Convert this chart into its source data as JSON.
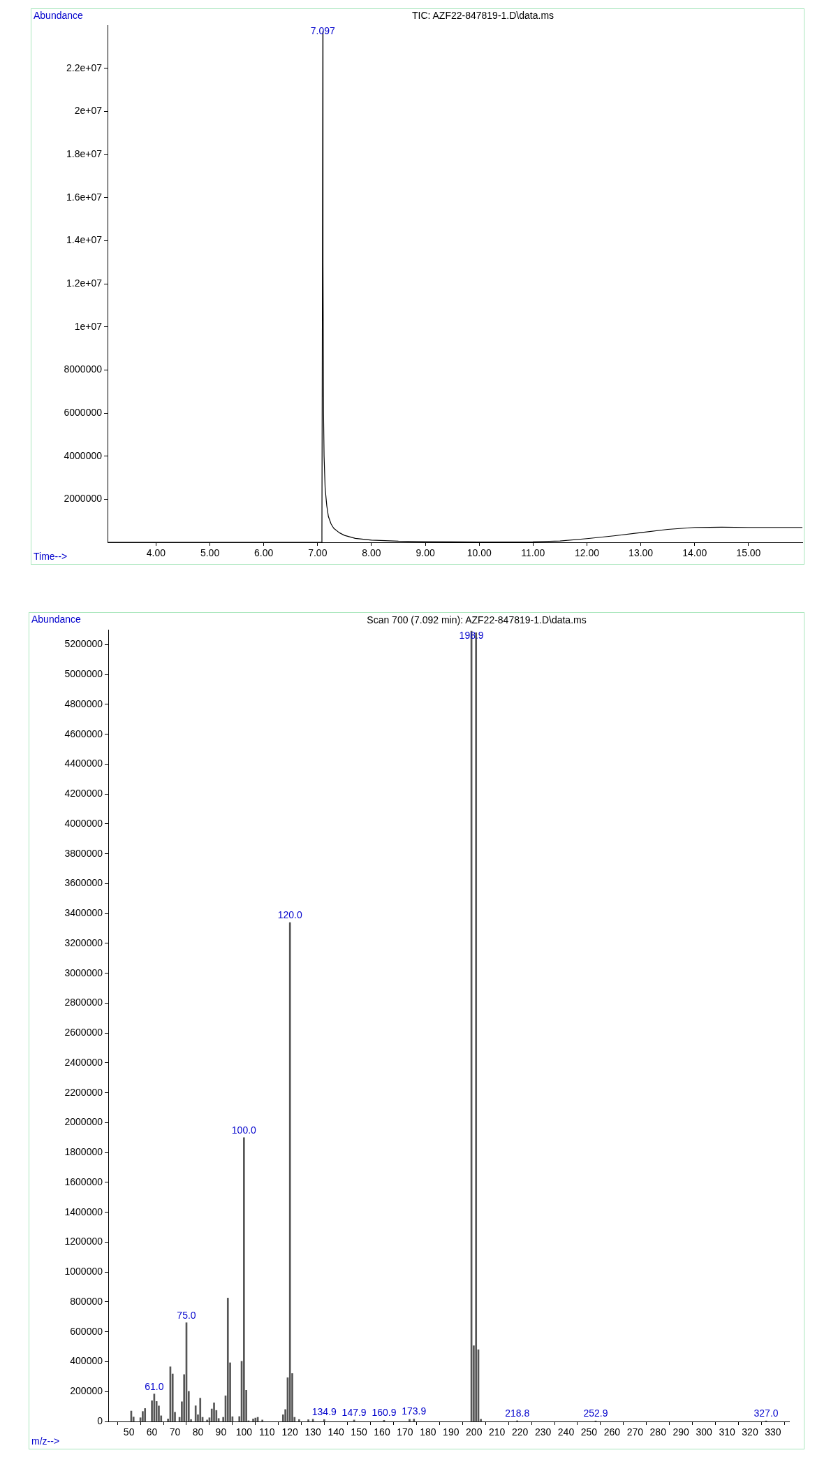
{
  "chart_data": [
    {
      "type": "line",
      "title": "TIC: AZF22-847819-1.D\\data.ms",
      "xlabel": "Time-->",
      "ylabel": "Abundance",
      "color": "#000000",
      "x": [
        3.1,
        7.0,
        7.07,
        7.08,
        7.09,
        7.097,
        7.1,
        7.11,
        7.12,
        7.14,
        7.17,
        7.2,
        7.25,
        7.3,
        7.4,
        7.5,
        7.7,
        8.0,
        8.5,
        9.0,
        10.0,
        11.0,
        11.5,
        12.0,
        12.5,
        13.0,
        13.5,
        14.0,
        14.5,
        15.0,
        15.5,
        16.0
      ],
      "values": [
        0,
        0,
        0,
        300000,
        13000000,
        23700000,
        13000000,
        6000000,
        4000000,
        2500000,
        1700000,
        1200000,
        850000,
        650000,
        450000,
        320000,
        180000,
        100000,
        50000,
        30000,
        10000,
        20000,
        60000,
        170000,
        300000,
        450000,
        600000,
        690000,
        700000,
        690000,
        690000,
        690000
      ],
      "xlim": [
        3.1,
        16.0
      ],
      "ylim": [
        0,
        24000000
      ],
      "xticks": [
        {
          "value": 4,
          "label": "4.00"
        },
        {
          "value": 5,
          "label": "5.00"
        },
        {
          "value": 6,
          "label": "6.00"
        },
        {
          "value": 7,
          "label": "7.00"
        },
        {
          "value": 8,
          "label": "8.00"
        },
        {
          "value": 9,
          "label": "9.00"
        },
        {
          "value": 10,
          "label": "10.00"
        },
        {
          "value": 11,
          "label": "11.00"
        },
        {
          "value": 12,
          "label": "12.00"
        },
        {
          "value": 13,
          "label": "13.00"
        },
        {
          "value": 14,
          "label": "14.00"
        },
        {
          "value": 15,
          "label": "15.00"
        }
      ],
      "yticks": [
        2000000,
        4000000,
        6000000,
        8000000,
        {
          "value": 10000000,
          "label": "1e+07"
        },
        {
          "value": 12000000,
          "label": "1.2e+07"
        },
        {
          "value": 14000000,
          "label": "1.4e+07"
        },
        {
          "value": 16000000,
          "label": "1.6e+07"
        },
        {
          "value": 18000000,
          "label": "1.8e+07"
        },
        {
          "value": 20000000,
          "label": "2e+07"
        },
        {
          "value": 22000000,
          "label": "2.2e+07"
        }
      ],
      "annotations": [
        {
          "text": "7.097",
          "x": 7.097,
          "y": 23700000
        }
      ]
    },
    {
      "type": "bar",
      "title": "Scan 700 (7.092 min): AZF22-847819-1.D\\data.ms",
      "xlabel": "m/z-->",
      "ylabel": "Abundance",
      "color": "#555555",
      "x": [
        51,
        52,
        55,
        56,
        57,
        60,
        61,
        62,
        63,
        64,
        67,
        68,
        69,
        70,
        72,
        73,
        74,
        75,
        76,
        77,
        79,
        80,
        81,
        82,
        84,
        85,
        86,
        87,
        88,
        89,
        91,
        92,
        93,
        94,
        95,
        98,
        99,
        100,
        101,
        102,
        104,
        105,
        106,
        108,
        117,
        118,
        119,
        120,
        121,
        122,
        124,
        128,
        130,
        134.9,
        147.9,
        160.9,
        172,
        173.9,
        198.9,
        199.9,
        200.9,
        201.9,
        203,
        218.8,
        252.9,
        327.0
      ],
      "values": [
        70000,
        30000,
        25000,
        67000,
        87000,
        139000,
        184000,
        134000,
        104000,
        38000,
        17000,
        366000,
        318000,
        62000,
        28000,
        132000,
        314000,
        661000,
        202000,
        13000,
        105000,
        45000,
        156000,
        28000,
        10000,
        25000,
        84000,
        125000,
        74000,
        20000,
        28000,
        172000,
        826000,
        393000,
        32000,
        33000,
        403000,
        1900000,
        209000,
        5000,
        17000,
        23000,
        28000,
        10000,
        45000,
        80000,
        293000,
        3340000,
        321000,
        28000,
        13000,
        12000,
        15000,
        13000,
        10000,
        8000,
        14000,
        16000,
        5290000,
        507000,
        5280000,
        480000,
        15000,
        5000,
        4000,
        4000
      ],
      "xlim": [
        41,
        337
      ],
      "ylim": [
        0,
        5300000
      ],
      "xticks": [
        50,
        60,
        70,
        80,
        90,
        100,
        110,
        120,
        130,
        140,
        150,
        160,
        170,
        180,
        190,
        200,
        210,
        220,
        230,
        240,
        250,
        260,
        270,
        280,
        290,
        300,
        310,
        320,
        330
      ],
      "yticks": [
        0,
        200000,
        400000,
        600000,
        800000,
        1000000,
        1200000,
        1400000,
        1600000,
        1800000,
        2000000,
        2200000,
        2400000,
        2600000,
        2800000,
        3000000,
        3200000,
        3400000,
        3600000,
        3800000,
        4000000,
        4200000,
        4400000,
        4600000,
        4800000,
        5000000,
        5200000
      ],
      "annotations": [
        {
          "text": "61.0",
          "x": 61,
          "y": 184000
        },
        {
          "text": "75.0",
          "x": 75,
          "y": 661000
        },
        {
          "text": "100.0",
          "x": 100,
          "y": 1900000
        },
        {
          "text": "120.0",
          "x": 120,
          "y": 3340000
        },
        {
          "text": "134.9",
          "x": 134.9,
          "y": 13000
        },
        {
          "text": "147.9",
          "x": 147.9,
          "y": 10000
        },
        {
          "text": "160.9",
          "x": 160.9,
          "y": 8000
        },
        {
          "text": "173.9",
          "x": 173.9,
          "y": 16000
        },
        {
          "text": "198.9",
          "x": 198.9,
          "y": 5290000
        },
        {
          "text": "218.8",
          "x": 218.8,
          "y": 5000
        },
        {
          "text": "252.9",
          "x": 252.9,
          "y": 4000
        },
        {
          "text": "327.0",
          "x": 327.0,
          "y": 4000
        }
      ]
    }
  ]
}
